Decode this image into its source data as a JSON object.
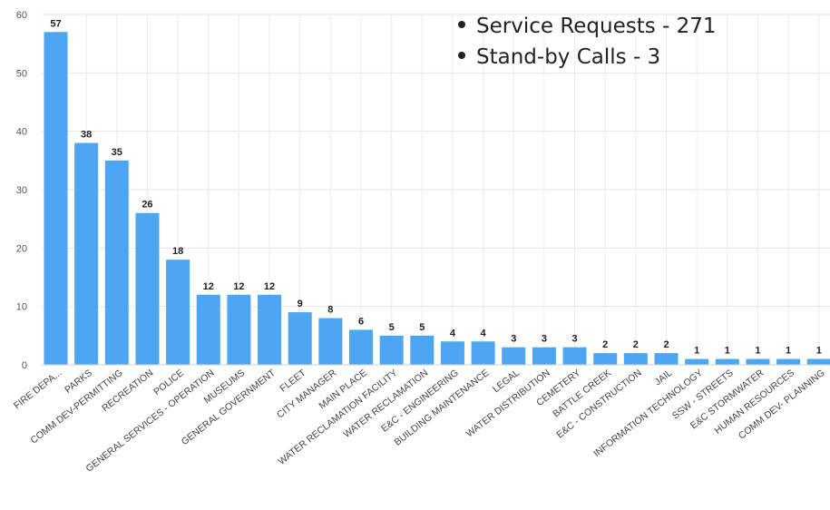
{
  "notes": [
    "Service Requests - 271",
    "Stand-by Calls - 3"
  ],
  "chart_data": {
    "type": "bar",
    "ylim": [
      0,
      60
    ],
    "yticks": [
      0,
      10,
      20,
      30,
      40,
      50,
      60
    ],
    "grid": true,
    "bar_color": "#4da6f1",
    "categories": [
      "FIRE DEPA...",
      "PARKS",
      "COMM DEV-PERMITTING",
      "RECREATION",
      "POLICE",
      "GENERAL SERVICES - OPERATION",
      "MUSEUMS",
      "GENERAL GOVERNMENT",
      "FLEET",
      "CITY MANAGER",
      "MAIN PLACE",
      "WATER RECLAMATION FACILITY",
      "WATER RECLAMATION",
      "E&C - ENGINEERING",
      "BUILDING MAINTENANCE",
      "LEGAL",
      "WATER DISTRIBUTION",
      "CEMETERY",
      "BATTLE CREEK",
      "E&C - CONSTRUCTION",
      "JAIL",
      "INFORMATION TECHNOLOGY",
      "SSW - STREETS",
      "E&C STORMWATER",
      "HUMAN RESOURCES",
      "COMM DEV- PLANNING"
    ],
    "values": [
      57,
      38,
      35,
      26,
      18,
      12,
      12,
      12,
      9,
      8,
      6,
      5,
      5,
      4,
      4,
      3,
      3,
      3,
      2,
      2,
      2,
      1,
      1,
      1,
      1,
      1
    ]
  }
}
